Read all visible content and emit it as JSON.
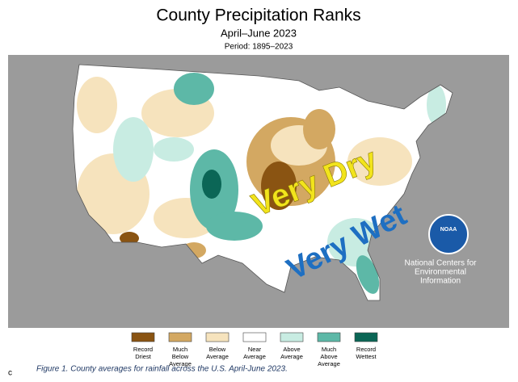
{
  "header": {
    "title": "County Precipitation Ranks",
    "subtitle": "April–June 2023",
    "period": "Period: 1895–2023"
  },
  "map": {
    "background": "#9b9b9b",
    "annotations": [
      {
        "text": "Very Dry",
        "color": "#f2e41c",
        "rotate": -22
      },
      {
        "text": "Very Wet",
        "color": "#1e6fc2",
        "rotate": -27
      }
    ],
    "logo": {
      "text": "NOAA",
      "lines": [
        "National Centers for",
        "Environmental",
        "Information"
      ]
    }
  },
  "legend": [
    {
      "lines": [
        "Record",
        "Driest"
      ],
      "color": "#8a5412"
    },
    {
      "lines": [
        "Much",
        "Below",
        "Average"
      ],
      "color": "#d3a862"
    },
    {
      "lines": [
        "Below",
        "Average"
      ],
      "color": "#f6e3bd"
    },
    {
      "lines": [
        "Near",
        "Average"
      ],
      "color": "#ffffff"
    },
    {
      "lines": [
        "Above",
        "Average"
      ],
      "color": "#c8ece2"
    },
    {
      "lines": [
        "Much",
        "Above",
        "Average"
      ],
      "color": "#5db8a7"
    },
    {
      "lines": [
        "Record",
        "Wettest"
      ],
      "color": "#0b6656"
    }
  ],
  "footer": {
    "mark": "c",
    "caption": "Figure 1. County averages for rainfall across the U.S. April-June 2023."
  }
}
